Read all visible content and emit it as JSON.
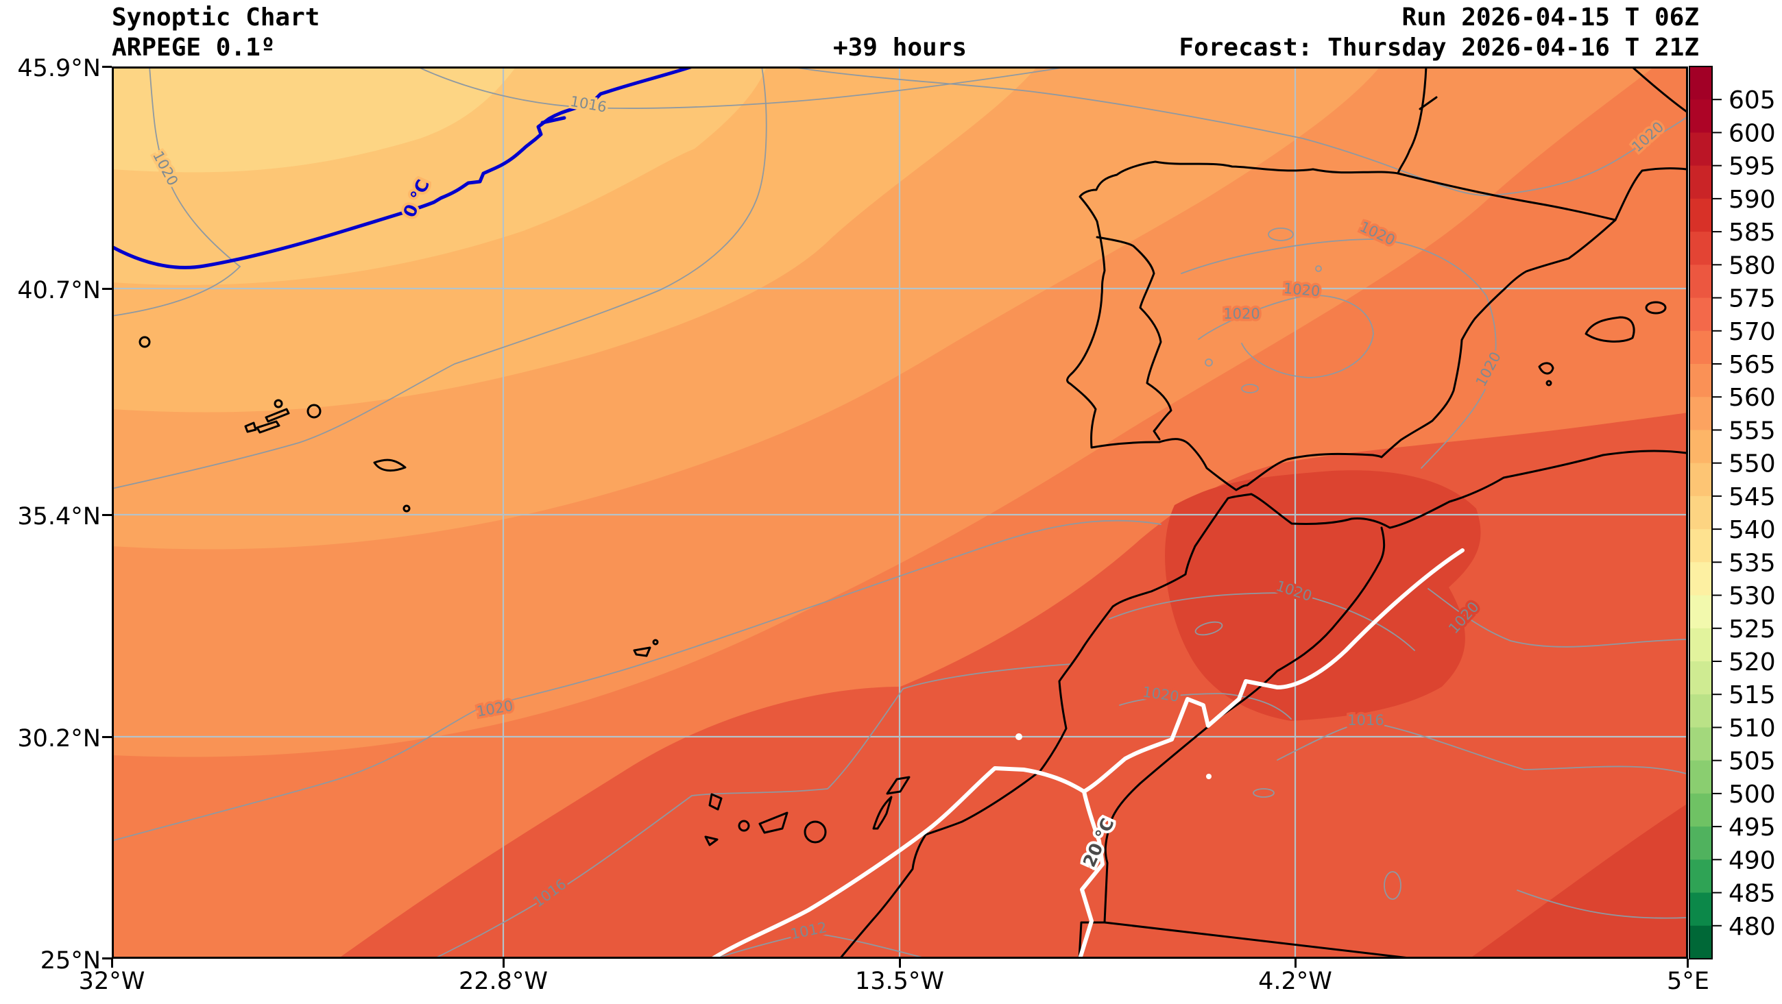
{
  "header": {
    "title": "Synoptic Chart",
    "model": "ARPEGE 0.1º",
    "lead": "+39 hours",
    "run": "Run 2026-04-15 T 06Z",
    "forecast": "Forecast: Thursday 2026-04-16 T 21Z"
  },
  "axes": {
    "lat_ticks": [
      "45.9°N",
      "40.7°N",
      "35.4°N",
      "30.2°N",
      "25°N"
    ],
    "lon_ticks": [
      "32°W",
      "22.8°W",
      "13.5°W",
      "4.2°W",
      "5°E"
    ]
  },
  "colorbar": {
    "tick_labels": [
      605,
      600,
      595,
      590,
      585,
      580,
      575,
      570,
      565,
      560,
      555,
      550,
      545,
      540,
      535,
      530,
      525,
      520,
      515,
      510,
      505,
      500,
      495,
      490,
      485,
      480
    ],
    "band_colors": [
      "#a20026",
      "#ad0426",
      "#bb1526",
      "#ca2427",
      "#d83128",
      "#e34434",
      "#ec5740",
      "#f3694a",
      "#f87d4e",
      "#fa9156",
      "#fca360",
      "#fdb567",
      "#fdc574",
      "#fdd482",
      "#fee290",
      "#fdf0a2",
      "#f2f9ad",
      "#e2f39d",
      "#cfeb92",
      "#bae287",
      "#a3d87c",
      "#8ace70",
      "#6fc264",
      "#50b25e",
      "#2fa355",
      "#0c8849",
      "#006837"
    ]
  },
  "map": {
    "grid_color": "#b4c3ca",
    "coast_color": "#000000",
    "isobar_color": "#8e99a2",
    "border_color": "#000000",
    "fill_colors": {
      "s1": "#fdd584",
      "s2": "#fdc675",
      "s3": "#fdb768",
      "s4": "#fba55e",
      "s5": "#f99355",
      "base": "#f57e4b",
      "d1": "#e8593c",
      "d2": "#dc4430"
    },
    "isobar_labels": [
      {
        "text": "1020"
      },
      {
        "text": "1016"
      },
      {
        "text": "1020"
      },
      {
        "text": "1020"
      },
      {
        "text": "1020"
      },
      {
        "text": "1020"
      },
      {
        "text": "1020"
      },
      {
        "text": "1020"
      },
      {
        "text": "1020"
      },
      {
        "text": "1020"
      },
      {
        "text": "1016"
      },
      {
        "text": "1020"
      },
      {
        "text": "1016"
      },
      {
        "text": "1012"
      }
    ],
    "temp_contours": [
      {
        "label": "0 °C",
        "color": "#0000cd"
      },
      {
        "label": "20 °C",
        "color": "#4a4a4a",
        "line_color": "#ffffff"
      }
    ]
  },
  "chart_data": {
    "type": "heatmap",
    "title": "Synoptic Chart",
    "subtitle": "ARPEGE 0.1º",
    "lead_time": "+39 hours",
    "run": "Run 2026-04-15 T 06Z",
    "valid": "Forecast: Thursday 2026-04-16 T 21Z",
    "x_ticks": [
      "32°W",
      "22.8°W",
      "13.5°W",
      "4.2°W",
      "5°E"
    ],
    "y_ticks": [
      "25°N",
      "30.2°N",
      "35.4°N",
      "40.7°N",
      "45.9°N"
    ],
    "xlim_deg_lon": [
      -32,
      5
    ],
    "ylim_deg_lat": [
      25,
      45.9
    ],
    "grid": true,
    "legend_position": "right",
    "colorbar_ticks": [
      605,
      600,
      595,
      590,
      585,
      580,
      575,
      570,
      565,
      560,
      555,
      550,
      545,
      540,
      535,
      530,
      525,
      520,
      515,
      510,
      505,
      500,
      495,
      490,
      485,
      480
    ],
    "shading_note": "filled contours, dark red (high, NW-to-SE increasing) over most of map, pale yellow in NW corner, greens only in colorbar",
    "pressure_isobar_labels": [
      "1020",
      "1016",
      "1012"
    ],
    "temperature_contour_labels": [
      "0 °C",
      "20 °C"
    ]
  }
}
